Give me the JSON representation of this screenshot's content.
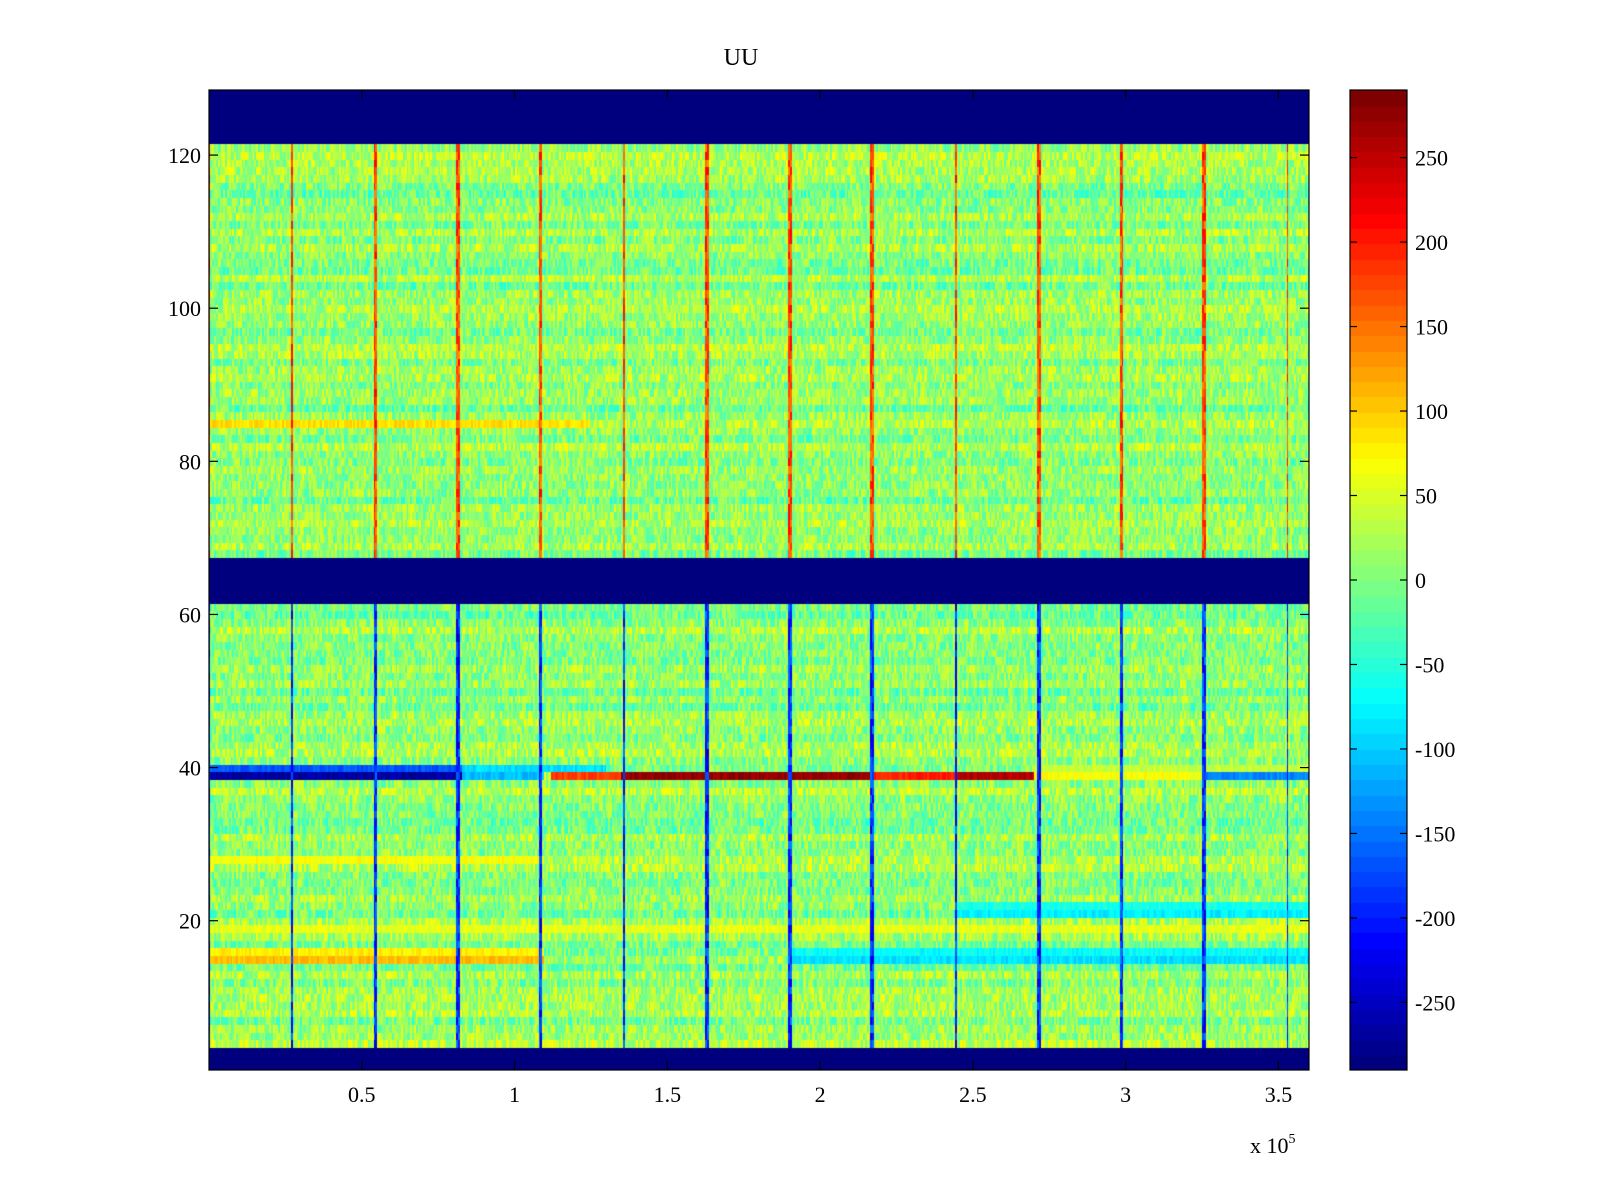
{
  "chart_data": {
    "type": "heatmap",
    "title": "UU",
    "xlabel": "",
    "ylabel": "",
    "x_exponent_label": {
      "base": "x 10",
      "power": "5"
    },
    "xlim": [
      0,
      3.6
    ],
    "ylim": [
      0.5,
      128.5
    ],
    "x_ticks": [
      0.5,
      1,
      1.5,
      2,
      2.5,
      3,
      3.5
    ],
    "x_tick_labels": [
      "0.5",
      "1",
      "1.5",
      "2",
      "2.5",
      "3",
      "3.5"
    ],
    "y_ticks": [
      20,
      40,
      60,
      80,
      100,
      120
    ],
    "y_tick_labels": [
      "20",
      "40",
      "60",
      "80",
      "100",
      "120"
    ],
    "colorbar": {
      "colormap": "jet",
      "clim": [
        -290,
        290
      ],
      "ticks": [
        -250,
        -200,
        -150,
        -100,
        -50,
        0,
        50,
        100,
        150,
        200,
        250
      ],
      "tick_labels": [
        "-250",
        "-200",
        "-150",
        "-100",
        "-50",
        "0",
        "50",
        "100",
        "150",
        "200",
        "250"
      ]
    },
    "background_value": 10,
    "noise_amplitude": 45,
    "saturated_row_bands": [
      {
        "y_from": 0.5,
        "y_to": 3.5,
        "value": -290
      },
      {
        "y_from": 61.5,
        "y_to": 67.5,
        "value": -290
      },
      {
        "y_from": 121.5,
        "y_to": 128.5,
        "value": -290
      }
    ],
    "periodic_columns": {
      "x_start": 0.002,
      "x_step": 0.2715,
      "count": 14,
      "upper_value": 220,
      "lower_value": -240,
      "split_y": 64.5
    },
    "row_features": [
      {
        "row": 39,
        "x_from": 0.0,
        "x_to": 0.83,
        "value": -270
      },
      {
        "row": 39,
        "x_from": 0.83,
        "x_to": 1.1,
        "value": -110
      },
      {
        "row": 39,
        "x_from": 1.12,
        "x_to": 1.35,
        "value": 180
      },
      {
        "row": 39,
        "x_from": 1.35,
        "x_to": 2.18,
        "value": 280
      },
      {
        "row": 39,
        "x_from": 2.18,
        "x_to": 2.45,
        "value": 200
      },
      {
        "row": 39,
        "x_from": 2.45,
        "x_to": 2.7,
        "value": 260
      },
      {
        "row": 39,
        "x_from": 2.7,
        "x_to": 3.25,
        "value": 70
      },
      {
        "row": 39,
        "x_from": 3.25,
        "x_to": 3.6,
        "value": -140
      },
      {
        "row": 40,
        "x_from": 0.0,
        "x_to": 0.83,
        "value": -170
      },
      {
        "row": 40,
        "x_from": 0.83,
        "x_to": 1.3,
        "value": -90
      },
      {
        "row": 40,
        "x_from": 2.7,
        "x_to": 3.6,
        "value": 40
      },
      {
        "row": 15,
        "x_from": 0.0,
        "x_to": 1.1,
        "value": 110
      },
      {
        "row": 15,
        "x_from": 1.9,
        "x_to": 3.6,
        "value": -90
      },
      {
        "row": 16,
        "x_from": 0.0,
        "x_to": 1.1,
        "value": 80
      },
      {
        "row": 16,
        "x_from": 1.9,
        "x_to": 3.6,
        "value": -70
      },
      {
        "row": 85,
        "x_from": 0.0,
        "x_to": 1.25,
        "value": 90
      },
      {
        "row": 21,
        "x_from": 2.45,
        "x_to": 3.6,
        "value": -80
      },
      {
        "row": 22,
        "x_from": 2.45,
        "x_to": 3.6,
        "value": -60
      },
      {
        "row": 28,
        "x_from": 0.0,
        "x_to": 1.1,
        "value": 70
      },
      {
        "row": 19,
        "x_from": 0.0,
        "x_to": 3.6,
        "value": 60
      }
    ]
  }
}
